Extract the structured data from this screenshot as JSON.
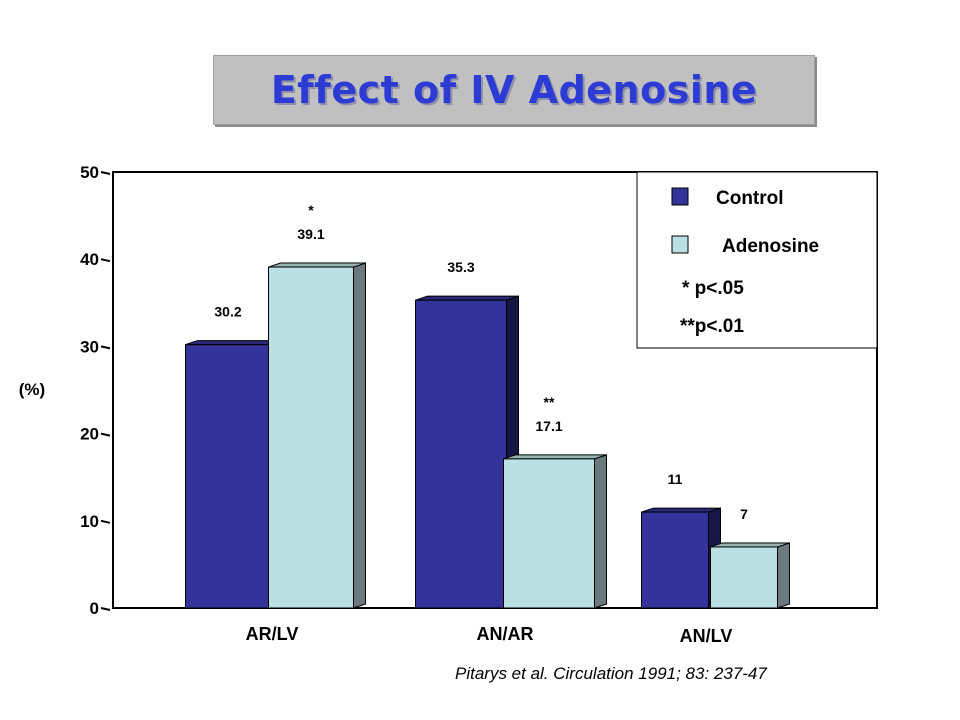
{
  "title": "Effect of IV Adenosine",
  "citation": "Pitarys et al. Circulation 1991; 83: 237-47",
  "colors": {
    "control": "#333399",
    "adenosine": "#bbe0e3"
  },
  "chart_data": {
    "type": "bar",
    "title": "Effect of IV Adenosine",
    "xlabel": "",
    "ylabel": "(%)",
    "ylim": [
      0,
      50
    ],
    "yticks": [
      "0",
      "10",
      "20",
      "30",
      "40",
      "50"
    ],
    "categories": [
      "AR/LV",
      "AN/AR",
      "AN/LV"
    ],
    "series": [
      {
        "name": "Control",
        "values": [
          30.2,
          35.3,
          11
        ],
        "labels": [
          "30.2",
          "35.3",
          "11"
        ],
        "marks": [
          "",
          "",
          ""
        ]
      },
      {
        "name": "Adenosine",
        "values": [
          39.1,
          17.1,
          7
        ],
        "labels": [
          "39.1",
          "17.1",
          "7"
        ],
        "marks": [
          "*",
          "**",
          ""
        ]
      }
    ],
    "legend": {
      "placement": "top-right",
      "items": [
        "Control",
        "Adenosine"
      ],
      "notes": [
        "* p<.05",
        "**p<.01"
      ]
    },
    "grid": false
  }
}
